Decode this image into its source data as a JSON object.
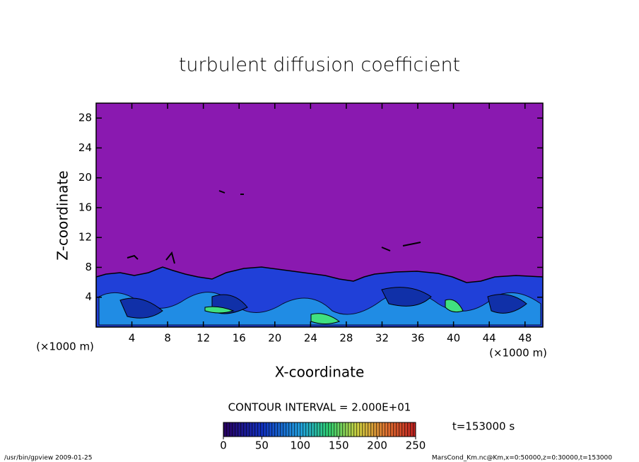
{
  "chart_data": {
    "type": "contour",
    "title": "turbulent diffusion coefficient",
    "x_label": "X-coordinate",
    "y_label": "Z-coordinate",
    "x_unit_label": "(×1000 m)",
    "y_unit_label": "(×1000 m)",
    "xlim": [
      0,
      50
    ],
    "ylim": [
      0,
      30
    ],
    "xticks": [
      4,
      8,
      12,
      16,
      20,
      24,
      28,
      32,
      36,
      40,
      44,
      48
    ],
    "yticks": [
      4,
      8,
      12,
      16,
      20,
      24,
      28
    ],
    "contour_interval_label": "CONTOUR INTERVAL = 2.000E+01",
    "time_label": "t=153000 s",
    "colorbar": {
      "lim": [
        0,
        250
      ],
      "ticks": [
        0,
        50,
        100,
        150,
        200,
        250
      ]
    },
    "footer_left": "/usr/bin/gpview  2009-01-25",
    "footer_right": "MarsCond_Km.nc@Km,x=0:50000,z=0:30000,t=153000"
  }
}
